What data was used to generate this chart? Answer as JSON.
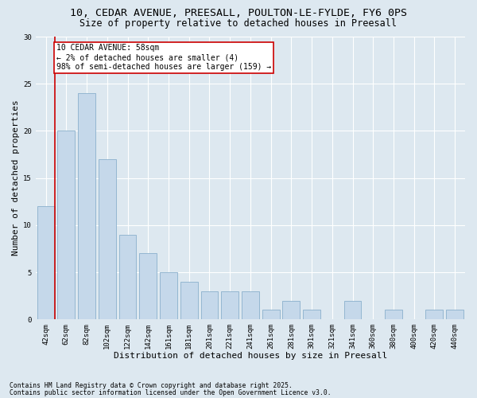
{
  "title_line1": "10, CEDAR AVENUE, PREESALL, POULTON-LE-FYLDE, FY6 0PS",
  "title_line2": "Size of property relative to detached houses in Preesall",
  "xlabel": "Distribution of detached houses by size in Preesall",
  "ylabel": "Number of detached properties",
  "categories": [
    "42sqm",
    "62sqm",
    "82sqm",
    "102sqm",
    "122sqm",
    "142sqm",
    "161sqm",
    "181sqm",
    "201sqm",
    "221sqm",
    "241sqm",
    "261sqm",
    "281sqm",
    "301sqm",
    "321sqm",
    "341sqm",
    "360sqm",
    "380sqm",
    "400sqm",
    "420sqm",
    "440sqm"
  ],
  "values": [
    12,
    20,
    24,
    17,
    9,
    7,
    5,
    4,
    3,
    3,
    3,
    1,
    2,
    1,
    0,
    2,
    0,
    1,
    0,
    1,
    1
  ],
  "bar_color": "#c5d8ea",
  "bar_edge_color": "#8ab0cc",
  "annotation_line1": "10 CEDAR AVENUE: 58sqm",
  "annotation_line2": "← 2% of detached houses are smaller (4)",
  "annotation_line3": "98% of semi-detached houses are larger (159) →",
  "annotation_box_facecolor": "#ffffff",
  "annotation_box_edgecolor": "#cc0000",
  "vline_color": "#cc0000",
  "vline_x": 0.425,
  "ylim": [
    0,
    30
  ],
  "yticks": [
    0,
    5,
    10,
    15,
    20,
    25,
    30
  ],
  "bg_color": "#dde8f0",
  "grid_color": "#ffffff",
  "footer_line1": "Contains HM Land Registry data © Crown copyright and database right 2025.",
  "footer_line2": "Contains public sector information licensed under the Open Government Licence v3.0.",
  "title_fontsize": 9.5,
  "subtitle_fontsize": 8.5,
  "tick_fontsize": 6.5,
  "label_fontsize": 8,
  "annotation_fontsize": 7,
  "footer_fontsize": 5.8
}
